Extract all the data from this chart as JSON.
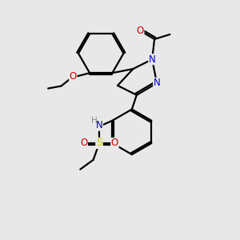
{
  "background_color": "#e8e8e8",
  "bond_color": "#000000",
  "bond_width": 1.6,
  "atom_colors": {
    "N": "#0000cc",
    "O": "#cc0000",
    "S": "#cccc00",
    "H": "#888888",
    "C": "#000000"
  },
  "font_size": 8.5,
  "canvas_xlim": [
    0,
    10
  ],
  "canvas_ylim": [
    0,
    10
  ]
}
